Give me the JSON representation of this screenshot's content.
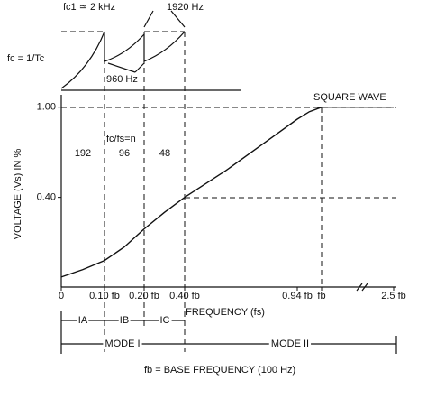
{
  "chart_data": {
    "type": "line",
    "y_label": "VOLTAGE (Vs) IN %",
    "x_label": "FREQUENCY (fs)",
    "x": [
      0,
      0.05,
      0.1,
      0.15,
      0.2,
      0.3,
      0.4,
      0.6,
      0.8,
      0.94,
      0.97,
      1.0,
      2.5
    ],
    "values": [
      -0.13,
      -0.08,
      -0.02,
      0.07,
      0.19,
      0.3,
      0.4,
      0.58,
      0.78,
      0.92,
      0.97,
      1.0,
      1.0
    ],
    "color": "#111111",
    "ylim": [
      -0.2,
      1.1
    ],
    "yticks": [
      {
        "value": 1.0,
        "label": "1.00"
      },
      {
        "value": 0.4,
        "label": "0.40"
      }
    ],
    "xticks": [
      {
        "value": 0,
        "label": "0"
      },
      {
        "value": 0.1,
        "label": "0.10 fb"
      },
      {
        "value": 0.2,
        "label": "0.20 fb"
      },
      {
        "value": 0.4,
        "label": "0.40 fb"
      },
      {
        "value": 0.94,
        "label": "0.94 fb"
      },
      {
        "value": 1.0,
        "label": "fb"
      },
      {
        "value": 2.5,
        "label": "2.5 fb"
      }
    ],
    "annotations": {
      "fc1": "fc1 ≃ 2 kHz",
      "f1920": "1920 Hz",
      "f960": "960 Hz",
      "fc_def": "fc = 1/Tc",
      "square": "SQUARE WAVE",
      "ratio": "fc/fs=n",
      "n1": "192",
      "n2": "96",
      "n3": "48",
      "ia": "IA",
      "ib": "IB",
      "ic": "IC",
      "mode1": "MODE I",
      "mode2": "MODE II",
      "base": "fb = BASE FREQUENCY (100 Hz)"
    }
  }
}
